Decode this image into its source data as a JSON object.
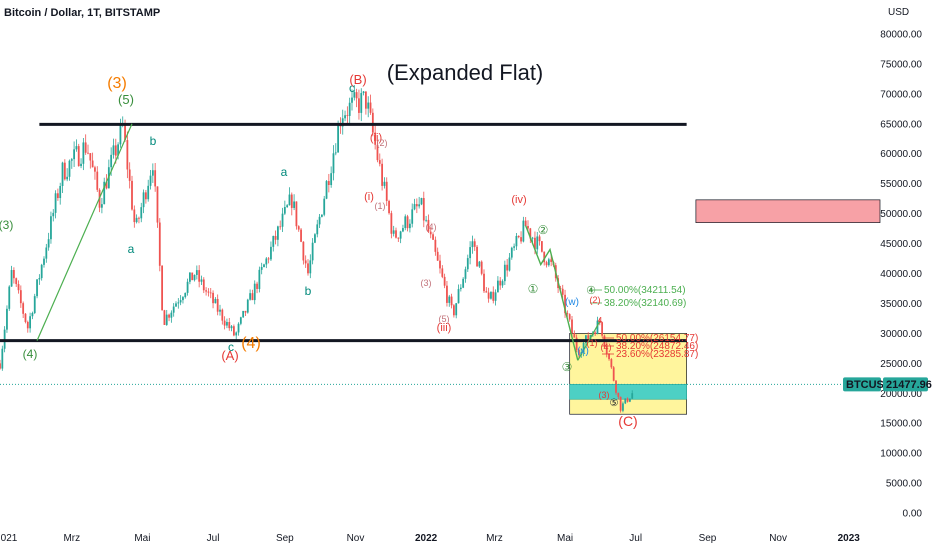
{
  "header": {
    "symbol_title": "Bitcoin / Dollar, 1T, BITSTAMP"
  },
  "chart_data": {
    "type": "candlestick",
    "title": "(Expanded Flat)",
    "currency_label": "USD",
    "price_ticks": [
      "80000.00",
      "75000.00",
      "70000.00",
      "65000.00",
      "60000.00",
      "55000.00",
      "50000.00",
      "45000.00",
      "40000.00",
      "35000.00",
      "30000.00",
      "25000.00",
      "20000.00",
      "15000.00",
      "10000.00",
      "5000.00",
      "0.00"
    ],
    "time_ticks": [
      "021",
      "Mrz",
      "Mai",
      "Jul",
      "Sep",
      "Nov",
      "2022",
      "Mrz",
      "Mai",
      "Jul",
      "Sep",
      "Nov",
      "2023"
    ],
    "time_tick_dates": [
      "2021-01-01",
      "2021-03-01",
      "2021-05-01",
      "2021-07-01",
      "2021-09-01",
      "2021-11-01",
      "2022-01-01",
      "2022-03-01",
      "2022-05-01",
      "2022-07-01",
      "2022-09-01",
      "2022-11-01",
      "2023-01-01"
    ],
    "x_range": [
      "2020-12-29",
      "2023-01-28"
    ],
    "y_range": [
      -4500,
      84000
    ],
    "grid": false,
    "last_price": {
      "symbol": "BTCUSD",
      "value": "21477.96",
      "price": 21477.96
    },
    "price_path": [
      [
        "2020-12-29",
        25000
      ],
      [
        "2021-01-08",
        40000
      ],
      [
        "2021-01-22",
        31000
      ],
      [
        "2021-02-21",
        57000
      ],
      [
        "2021-03-14",
        61500
      ],
      [
        "2021-03-25",
        52000
      ],
      [
        "2021-04-14",
        64500
      ],
      [
        "2021-04-25",
        47000
      ],
      [
        "2021-05-10",
        59000
      ],
      [
        "2021-05-19",
        32000
      ],
      [
        "2021-06-15",
        40000
      ],
      [
        "2021-07-20",
        29500
      ],
      [
        "2021-09-07",
        52500
      ],
      [
        "2021-09-21",
        40000
      ],
      [
        "2021-10-20",
        67000
      ],
      [
        "2021-11-10",
        69000
      ],
      [
        "2021-12-04",
        46000
      ],
      [
        "2021-12-27",
        51500
      ],
      [
        "2022-01-24",
        33000
      ],
      [
        "2022-02-10",
        45500
      ],
      [
        "2022-02-24",
        35000
      ],
      [
        "2022-03-28",
        48000
      ],
      [
        "2022-04-20",
        41000
      ],
      [
        "2022-05-12",
        27000
      ],
      [
        "2022-05-31",
        32000
      ],
      [
        "2022-06-18",
        17600
      ],
      [
        "2022-06-28",
        20000
      ]
    ],
    "series": [
      {
        "name": "BTCUSD",
        "style": "candles",
        "up_color": "#26a69a",
        "down_color": "#ef5350"
      }
    ],
    "trend_lines": [
      {
        "from": [
          "2021-01-30",
          28800
        ],
        "to": [
          "2021-04-22",
          65000
        ],
        "color": "#4caf50"
      },
      {
        "from": [
          "2022-05-12",
          25500
        ],
        "to": [
          "2022-05-31",
          32000
        ],
        "color": "#4caf50"
      }
    ],
    "horizontal_lines": [
      {
        "from": "2021-02-01",
        "to": "2022-08-14",
        "price": 64900,
        "color": "#131722"
      },
      {
        "from": "2020-12-29",
        "to": "2022-08-14",
        "price": 28800,
        "color": "#131722"
      }
    ],
    "boxes": [
      {
        "from": "2022-08-22",
        "to": "2023-01-28",
        "top": 52300,
        "bottom": 48500,
        "color": "#f7a1a6"
      },
      {
        "from": "2022-05-05",
        "to": "2022-08-14",
        "top": 30000,
        "bottom": 16500,
        "color": "#fff59d"
      },
      {
        "from": "2022-05-05",
        "to": "2022-08-14",
        "top": 21500,
        "bottom": 19000,
        "color": "#4dd0c4"
      }
    ],
    "fib_levels": [
      {
        "text": "50.00%(34211.54)",
        "color": "#4caf50"
      },
      {
        "text": "38.20%(32140.69)",
        "color": "#4caf50"
      },
      {
        "text": "50.00%(26154.77)",
        "color": "#e53935"
      },
      {
        "text": "38.20%(24872.46)",
        "color": "#e53935"
      },
      {
        "text": "23.60%(23285.87)",
        "color": "#e53935"
      }
    ],
    "wave_labels": [
      {
        "text": "(3)",
        "color": "#f57c00",
        "size": 16
      },
      {
        "text": "(5)",
        "color": "#388e3c",
        "size": 13
      },
      {
        "text": "(3)",
        "color": "#388e3c",
        "size": 12
      },
      {
        "text": "(4)",
        "color": "#388e3c",
        "size": 12
      },
      {
        "text": "b",
        "color": "#00897b",
        "size": 12
      },
      {
        "text": "a",
        "color": "#00897b",
        "size": 12
      },
      {
        "text": "a",
        "color": "#00897b",
        "size": 12
      },
      {
        "text": "b",
        "color": "#00897b",
        "size": 12
      },
      {
        "text": "c",
        "color": "#00897b",
        "size": 12
      },
      {
        "text": "c",
        "color": "#00897b",
        "size": 12
      },
      {
        "text": "(A)",
        "color": "#e53935",
        "size": 13
      },
      {
        "text": "(4)",
        "color": "#f57c00",
        "size": 16
      },
      {
        "text": "(B)",
        "color": "#e53935",
        "size": 13
      },
      {
        "text": "(ii)",
        "color": "#e53935",
        "size": 11
      },
      {
        "text": "(2)",
        "color": "#c2727a",
        "size": 9
      },
      {
        "text": "(i)",
        "color": "#e53935",
        "size": 11
      },
      {
        "text": "(1)",
        "color": "#c2727a",
        "size": 9
      },
      {
        "text": "(4)",
        "color": "#c2727a",
        "size": 9
      },
      {
        "text": "(3)",
        "color": "#c2727a",
        "size": 9
      },
      {
        "text": "(5)",
        "color": "#c2727a",
        "size": 9
      },
      {
        "text": "(iii)",
        "color": "#e53935",
        "size": 11
      },
      {
        "text": "(iv)",
        "color": "#e53935",
        "size": 11
      },
      {
        "text": "②",
        "color": "#388e3c",
        "size": 12
      },
      {
        "text": "①",
        "color": "#388e3c",
        "size": 12
      },
      {
        "text": "(w)",
        "color": "#1e88e5",
        "size": 10
      },
      {
        "text": "④",
        "color": "#388e3c",
        "size": 11
      },
      {
        "text": "(x)",
        "color": "#1e88e5",
        "size": 10
      },
      {
        "text": "③",
        "color": "#388e3c",
        "size": 12
      },
      {
        "text": "(1)",
        "color": "#e53935",
        "size": 9
      },
      {
        "text": "(4)",
        "color": "#e53935",
        "size": 9
      },
      {
        "text": "(3)",
        "color": "#e53935",
        "size": 9
      },
      {
        "text": "⑤",
        "color": "#131722",
        "size": 10
      },
      {
        "text": "(C)",
        "color": "#e53935",
        "size": 14
      },
      {
        "text": "(2)",
        "color": "#e53935",
        "size": 9
      },
      {
        "text": "4",
        "color": "#e53935",
        "size": 8
      }
    ]
  }
}
